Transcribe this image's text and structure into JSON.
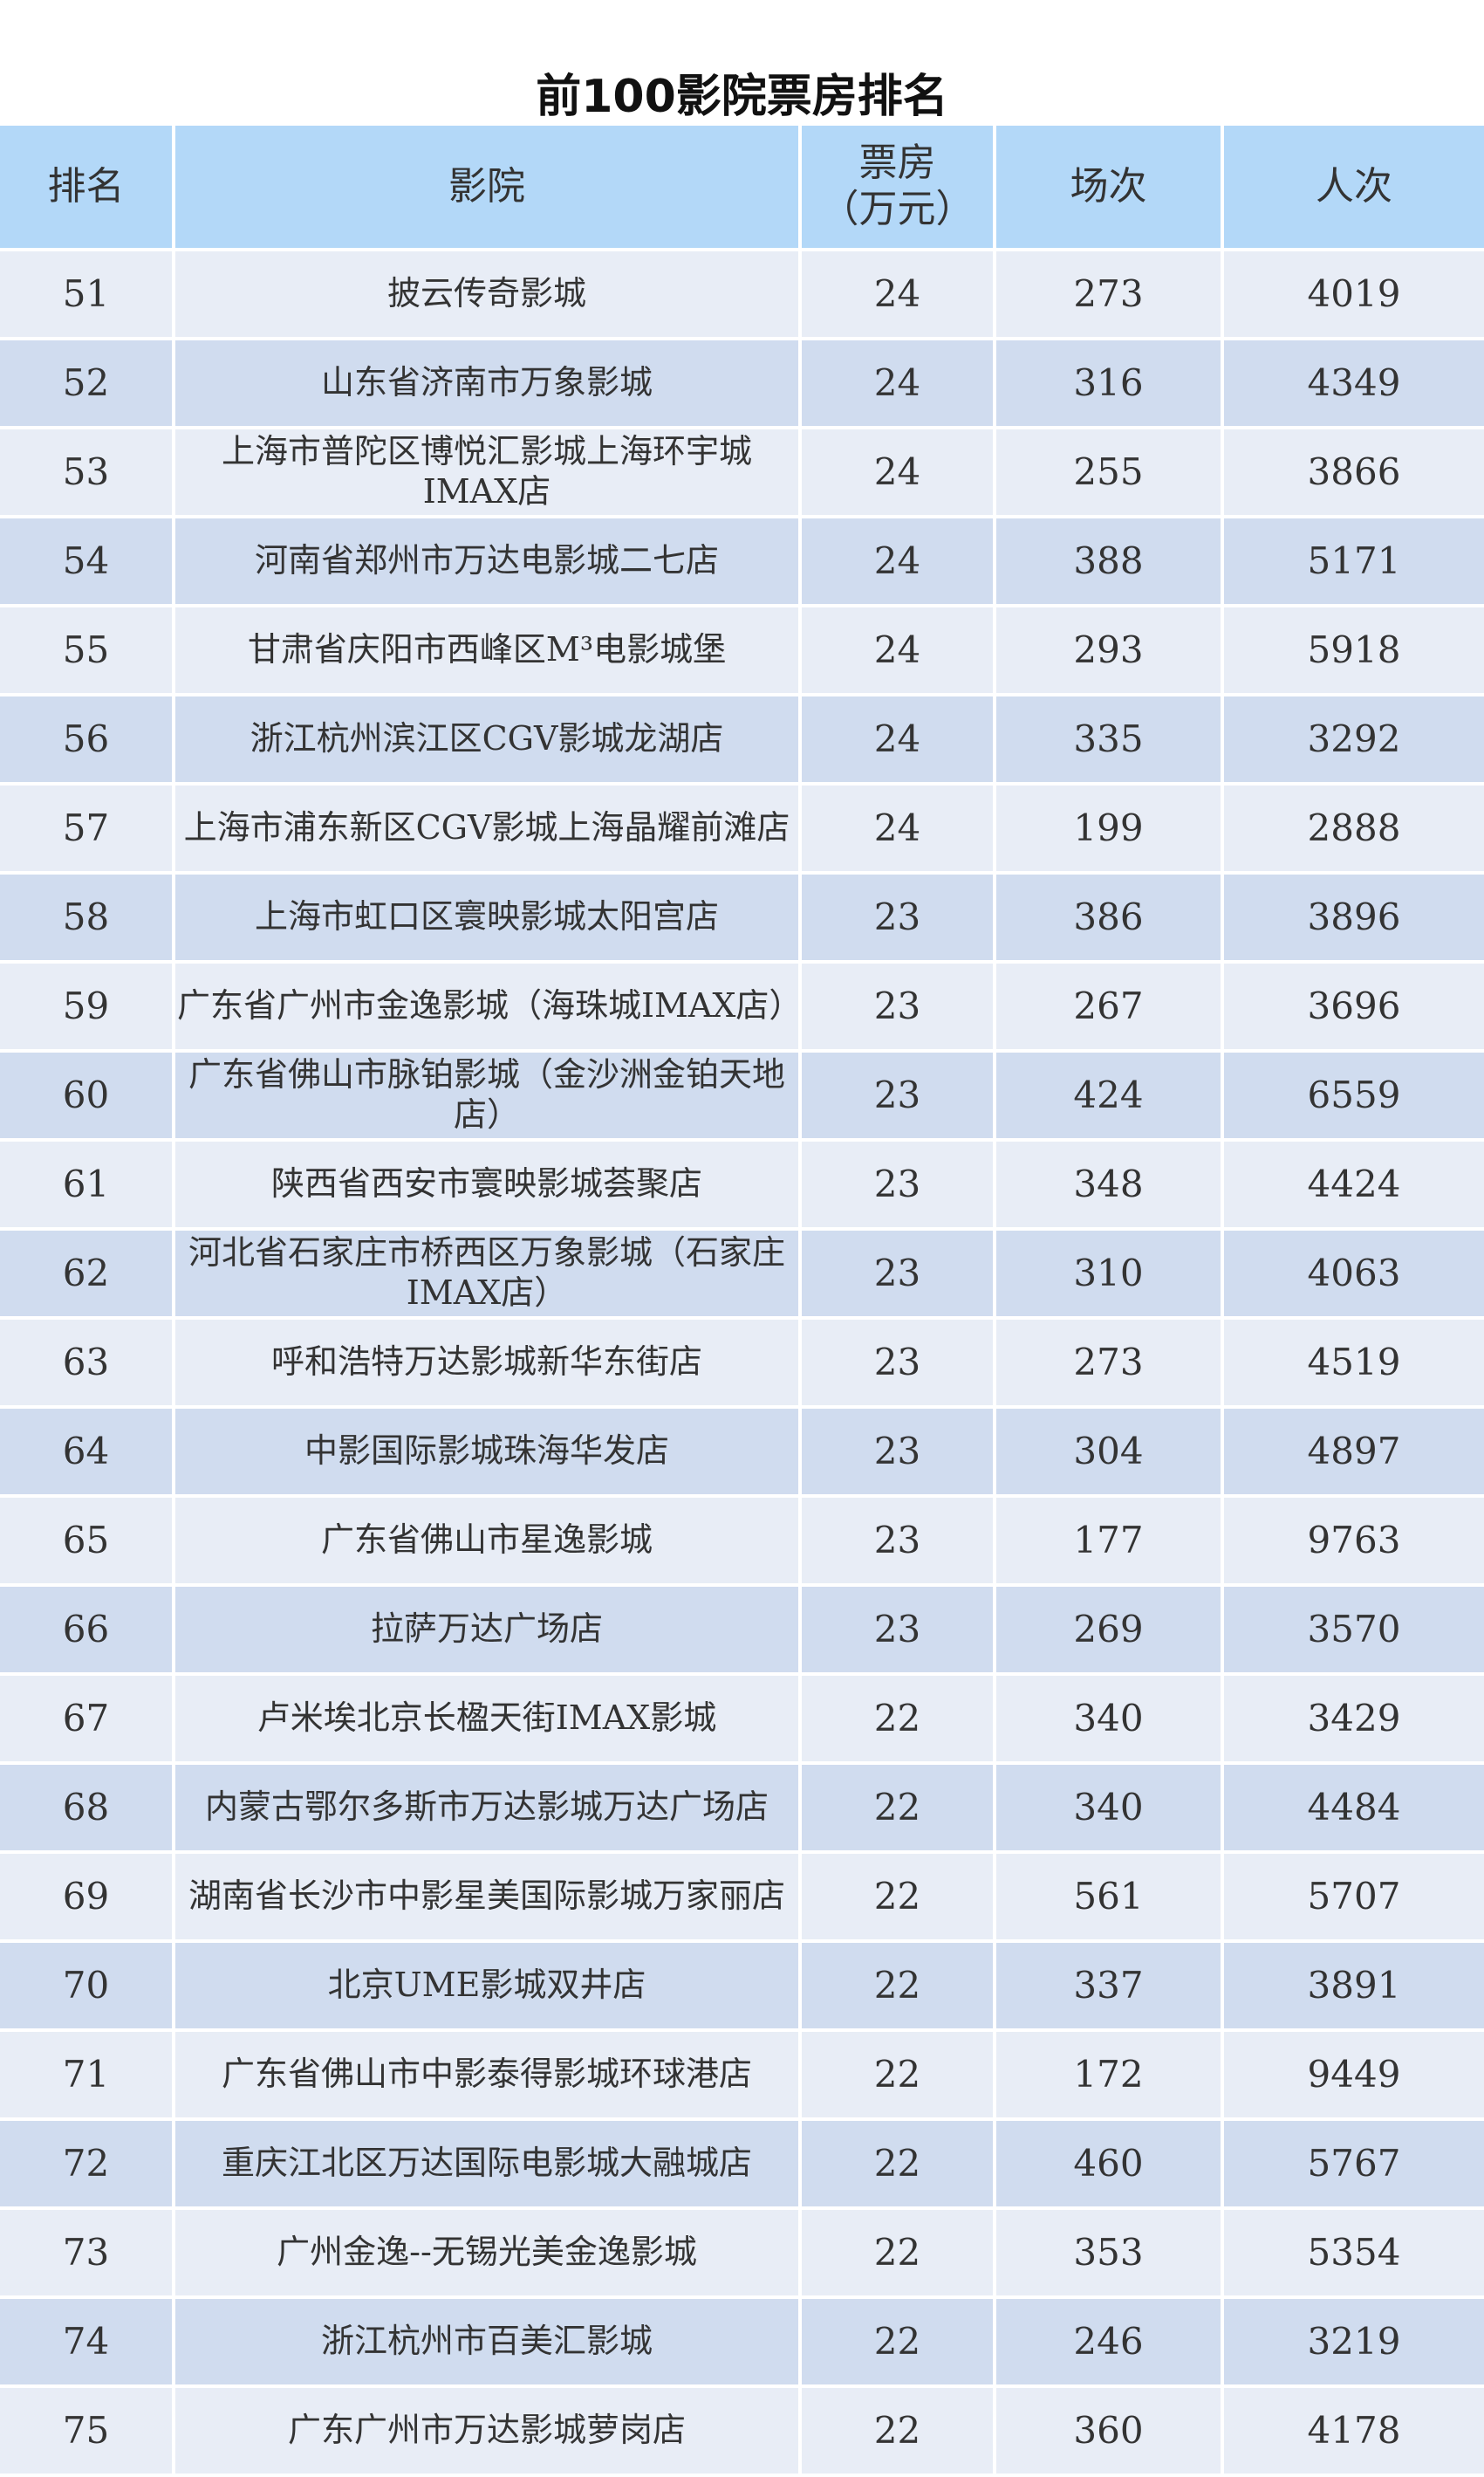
{
  "title": "前100影院票房排名",
  "columns": [
    "排名",
    "影院",
    "票房\n（万元）",
    "场次",
    "人次"
  ],
  "columns_display": {
    "rank": "排名",
    "cinema": "影院",
    "box_office_line1": "票房",
    "box_office_line2": "（万元）",
    "shows": "场次",
    "admissions": "人次"
  },
  "rows": [
    {
      "rank": "51",
      "cinema": "披云传奇影城",
      "box_office": "24",
      "shows": "273",
      "admissions": "4019"
    },
    {
      "rank": "52",
      "cinema": "山东省济南市万象影城",
      "box_office": "24",
      "shows": "316",
      "admissions": "4349"
    },
    {
      "rank": "53",
      "cinema": "上海市普陀区博悦汇影城上海环宇城IMAX店",
      "box_office": "24",
      "shows": "255",
      "admissions": "3866"
    },
    {
      "rank": "54",
      "cinema": "河南省郑州市万达电影城二七店",
      "box_office": "24",
      "shows": "388",
      "admissions": "5171"
    },
    {
      "rank": "55",
      "cinema": "甘肃省庆阳市西峰区M³电影城堡",
      "box_office": "24",
      "shows": "293",
      "admissions": "5918"
    },
    {
      "rank": "56",
      "cinema": "浙江杭州滨江区CGV影城龙湖店",
      "box_office": "24",
      "shows": "335",
      "admissions": "3292"
    },
    {
      "rank": "57",
      "cinema": "上海市浦东新区CGV影城上海晶耀前滩店",
      "box_office": "24",
      "shows": "199",
      "admissions": "2888"
    },
    {
      "rank": "58",
      "cinema": "上海市虹口区寰映影城太阳宫店",
      "box_office": "23",
      "shows": "386",
      "admissions": "3896"
    },
    {
      "rank": "59",
      "cinema": "广东省广州市金逸影城（海珠城IMAX店）",
      "box_office": "23",
      "shows": "267",
      "admissions": "3696"
    },
    {
      "rank": "60",
      "cinema": "广东省佛山市脉铂影城（金沙洲金铂天地店）",
      "box_office": "23",
      "shows": "424",
      "admissions": "6559"
    },
    {
      "rank": "61",
      "cinema": "陕西省西安市寰映影城荟聚店",
      "box_office": "23",
      "shows": "348",
      "admissions": "4424"
    },
    {
      "rank": "62",
      "cinema": "河北省石家庄市桥西区万象影城（石家庄IMAX店）",
      "box_office": "23",
      "shows": "310",
      "admissions": "4063"
    },
    {
      "rank": "63",
      "cinema": "呼和浩特万达影城新华东街店",
      "box_office": "23",
      "shows": "273",
      "admissions": "4519"
    },
    {
      "rank": "64",
      "cinema": "中影国际影城珠海华发店",
      "box_office": "23",
      "shows": "304",
      "admissions": "4897"
    },
    {
      "rank": "65",
      "cinema": "广东省佛山市星逸影城",
      "box_office": "23",
      "shows": "177",
      "admissions": "9763"
    },
    {
      "rank": "66",
      "cinema": "拉萨万达广场店",
      "box_office": "23",
      "shows": "269",
      "admissions": "3570"
    },
    {
      "rank": "67",
      "cinema": "卢米埃北京长楹天街IMAX影城",
      "box_office": "22",
      "shows": "340",
      "admissions": "3429"
    },
    {
      "rank": "68",
      "cinema": "内蒙古鄂尔多斯市万达影城万达广场店",
      "box_office": "22",
      "shows": "340",
      "admissions": "4484"
    },
    {
      "rank": "69",
      "cinema": "湖南省长沙市中影星美国际影城万家丽店",
      "box_office": "22",
      "shows": "561",
      "admissions": "5707"
    },
    {
      "rank": "70",
      "cinema": "北京UME影城双井店",
      "box_office": "22",
      "shows": "337",
      "admissions": "3891"
    },
    {
      "rank": "71",
      "cinema": "广东省佛山市中影泰得影城环球港店",
      "box_office": "22",
      "shows": "172",
      "admissions": "9449"
    },
    {
      "rank": "72",
      "cinema": "重庆江北区万达国际电影城大融城店",
      "box_office": "22",
      "shows": "460",
      "admissions": "5767"
    },
    {
      "rank": "73",
      "cinema": "广州金逸--无锡光美金逸影城",
      "box_office": "22",
      "shows": "353",
      "admissions": "5354"
    },
    {
      "rank": "74",
      "cinema": "浙江杭州市百美汇影城",
      "box_office": "22",
      "shows": "246",
      "admissions": "3219"
    },
    {
      "rank": "75",
      "cinema": "广东广州市万达影城萝岗店",
      "box_office": "22",
      "shows": "360",
      "admissions": "4178"
    }
  ],
  "colors": {
    "header": "#b3d8f8",
    "row_light": "#e8edf6",
    "row_dark": "#d0dcef"
  }
}
